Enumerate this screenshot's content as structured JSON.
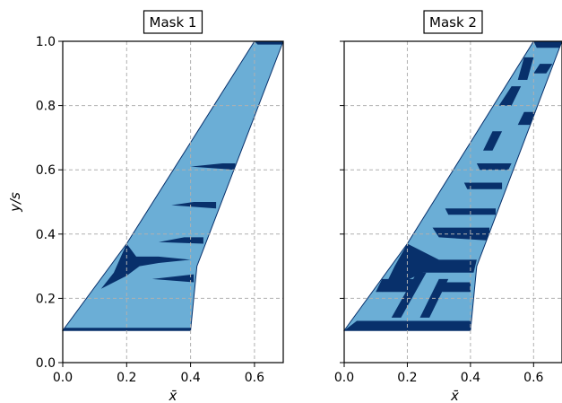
{
  "colors": {
    "fill_light": "#6baed6",
    "fill_dark": "#08306b",
    "grid": "#b0b0b0",
    "outline": "#08306b"
  },
  "chart_data": [
    {
      "type": "area",
      "title": "Mask 1",
      "xlabel": "x̄",
      "ylabel": "y/s",
      "xlim": [
        0.0,
        0.69
      ],
      "ylim": [
        0.0,
        1.0
      ],
      "xticks": [
        "0.0",
        "0.2",
        "0.4",
        "0.6"
      ],
      "yticks": [
        "0.0",
        "0.2",
        "0.4",
        "0.6",
        "0.8",
        "1.0"
      ],
      "grid": true,
      "outline": [
        [
          0.0,
          0.1
        ],
        [
          0.4,
          0.1
        ],
        [
          0.42,
          0.3
        ],
        [
          0.69,
          1.0
        ],
        [
          0.6,
          1.0
        ],
        [
          0.2,
          0.37
        ]
      ],
      "dark_regions": [
        [
          [
            0.0,
            0.1
          ],
          [
            0.4,
            0.1
          ],
          [
            0.4,
            0.108
          ],
          [
            0.0,
            0.108
          ]
        ],
        [
          [
            0.6,
            1.0
          ],
          [
            0.69,
            1.0
          ],
          [
            0.688,
            0.99
          ],
          [
            0.61,
            0.99
          ]
        ],
        [
          [
            0.2,
            0.37
          ],
          [
            0.23,
            0.33
          ],
          [
            0.3,
            0.33
          ],
          [
            0.4,
            0.32
          ],
          [
            0.3,
            0.31
          ],
          [
            0.24,
            0.3
          ],
          [
            0.2,
            0.27
          ],
          [
            0.12,
            0.23
          ],
          [
            0.16,
            0.28
          ]
        ],
        [
          [
            0.38,
            0.39
          ],
          [
            0.44,
            0.39
          ],
          [
            0.44,
            0.37
          ],
          [
            0.3,
            0.375
          ]
        ],
        [
          [
            0.41,
            0.5
          ],
          [
            0.48,
            0.5
          ],
          [
            0.48,
            0.48
          ],
          [
            0.34,
            0.49
          ]
        ],
        [
          [
            0.41,
            0.275
          ],
          [
            0.41,
            0.25
          ],
          [
            0.28,
            0.26
          ]
        ],
        [
          [
            0.5,
            0.62
          ],
          [
            0.54,
            0.62
          ],
          [
            0.54,
            0.6
          ],
          [
            0.4,
            0.61
          ]
        ]
      ]
    },
    {
      "type": "area",
      "title": "Mask 2",
      "xlabel": "x̄",
      "ylabel": "",
      "xlim": [
        0.0,
        0.69
      ],
      "ylim": [
        0.0,
        1.0
      ],
      "xticks": [
        "0.0",
        "0.2",
        "0.4",
        "0.6"
      ],
      "yticks": [
        "0.0",
        "0.2",
        "0.4",
        "0.6",
        "0.8",
        "1.0"
      ],
      "grid": true,
      "outline": [
        [
          0.0,
          0.1
        ],
        [
          0.4,
          0.1
        ],
        [
          0.42,
          0.3
        ],
        [
          0.69,
          1.0
        ],
        [
          0.6,
          1.0
        ],
        [
          0.2,
          0.37
        ]
      ],
      "dark_regions": [
        [
          [
            0.0,
            0.1
          ],
          [
            0.4,
            0.1
          ],
          [
            0.4,
            0.13
          ],
          [
            0.04,
            0.13
          ]
        ],
        [
          [
            0.6,
            1.0
          ],
          [
            0.69,
            1.0
          ],
          [
            0.686,
            0.98
          ],
          [
            0.61,
            0.98
          ]
        ],
        [
          [
            0.2,
            0.37
          ],
          [
            0.3,
            0.32
          ],
          [
            0.42,
            0.32
          ],
          [
            0.41,
            0.28
          ],
          [
            0.25,
            0.28
          ],
          [
            0.12,
            0.22
          ],
          [
            0.16,
            0.3
          ]
        ],
        [
          [
            0.28,
            0.42
          ],
          [
            0.46,
            0.42
          ],
          [
            0.46,
            0.38
          ],
          [
            0.3,
            0.39
          ]
        ],
        [
          [
            0.32,
            0.48
          ],
          [
            0.48,
            0.48
          ],
          [
            0.48,
            0.46
          ],
          [
            0.33,
            0.46
          ]
        ],
        [
          [
            0.38,
            0.56
          ],
          [
            0.5,
            0.56
          ],
          [
            0.5,
            0.54
          ],
          [
            0.39,
            0.54
          ]
        ],
        [
          [
            0.42,
            0.62
          ],
          [
            0.53,
            0.62
          ],
          [
            0.52,
            0.6
          ],
          [
            0.43,
            0.6
          ]
        ],
        [
          [
            0.44,
            0.66
          ],
          [
            0.47,
            0.66
          ],
          [
            0.5,
            0.72
          ],
          [
            0.47,
            0.72
          ]
        ],
        [
          [
            0.49,
            0.8
          ],
          [
            0.53,
            0.8
          ],
          [
            0.56,
            0.86
          ],
          [
            0.53,
            0.86
          ]
        ],
        [
          [
            0.55,
            0.74
          ],
          [
            0.6,
            0.74
          ],
          [
            0.62,
            0.78
          ],
          [
            0.57,
            0.78
          ]
        ],
        [
          [
            0.55,
            0.88
          ],
          [
            0.58,
            0.88
          ],
          [
            0.6,
            0.95
          ],
          [
            0.57,
            0.95
          ]
        ],
        [
          [
            0.6,
            0.9
          ],
          [
            0.64,
            0.9
          ],
          [
            0.66,
            0.93
          ],
          [
            0.62,
            0.93
          ]
        ],
        [
          [
            0.1,
            0.22
          ],
          [
            0.2,
            0.22
          ],
          [
            0.22,
            0.26
          ],
          [
            0.12,
            0.26
          ]
        ],
        [
          [
            0.15,
            0.14
          ],
          [
            0.18,
            0.14
          ],
          [
            0.26,
            0.28
          ],
          [
            0.23,
            0.28
          ]
        ],
        [
          [
            0.24,
            0.14
          ],
          [
            0.27,
            0.14
          ],
          [
            0.33,
            0.26
          ],
          [
            0.3,
            0.26
          ]
        ],
        [
          [
            0.31,
            0.22
          ],
          [
            0.4,
            0.22
          ],
          [
            0.4,
            0.25
          ],
          [
            0.31,
            0.25
          ]
        ]
      ]
    }
  ]
}
